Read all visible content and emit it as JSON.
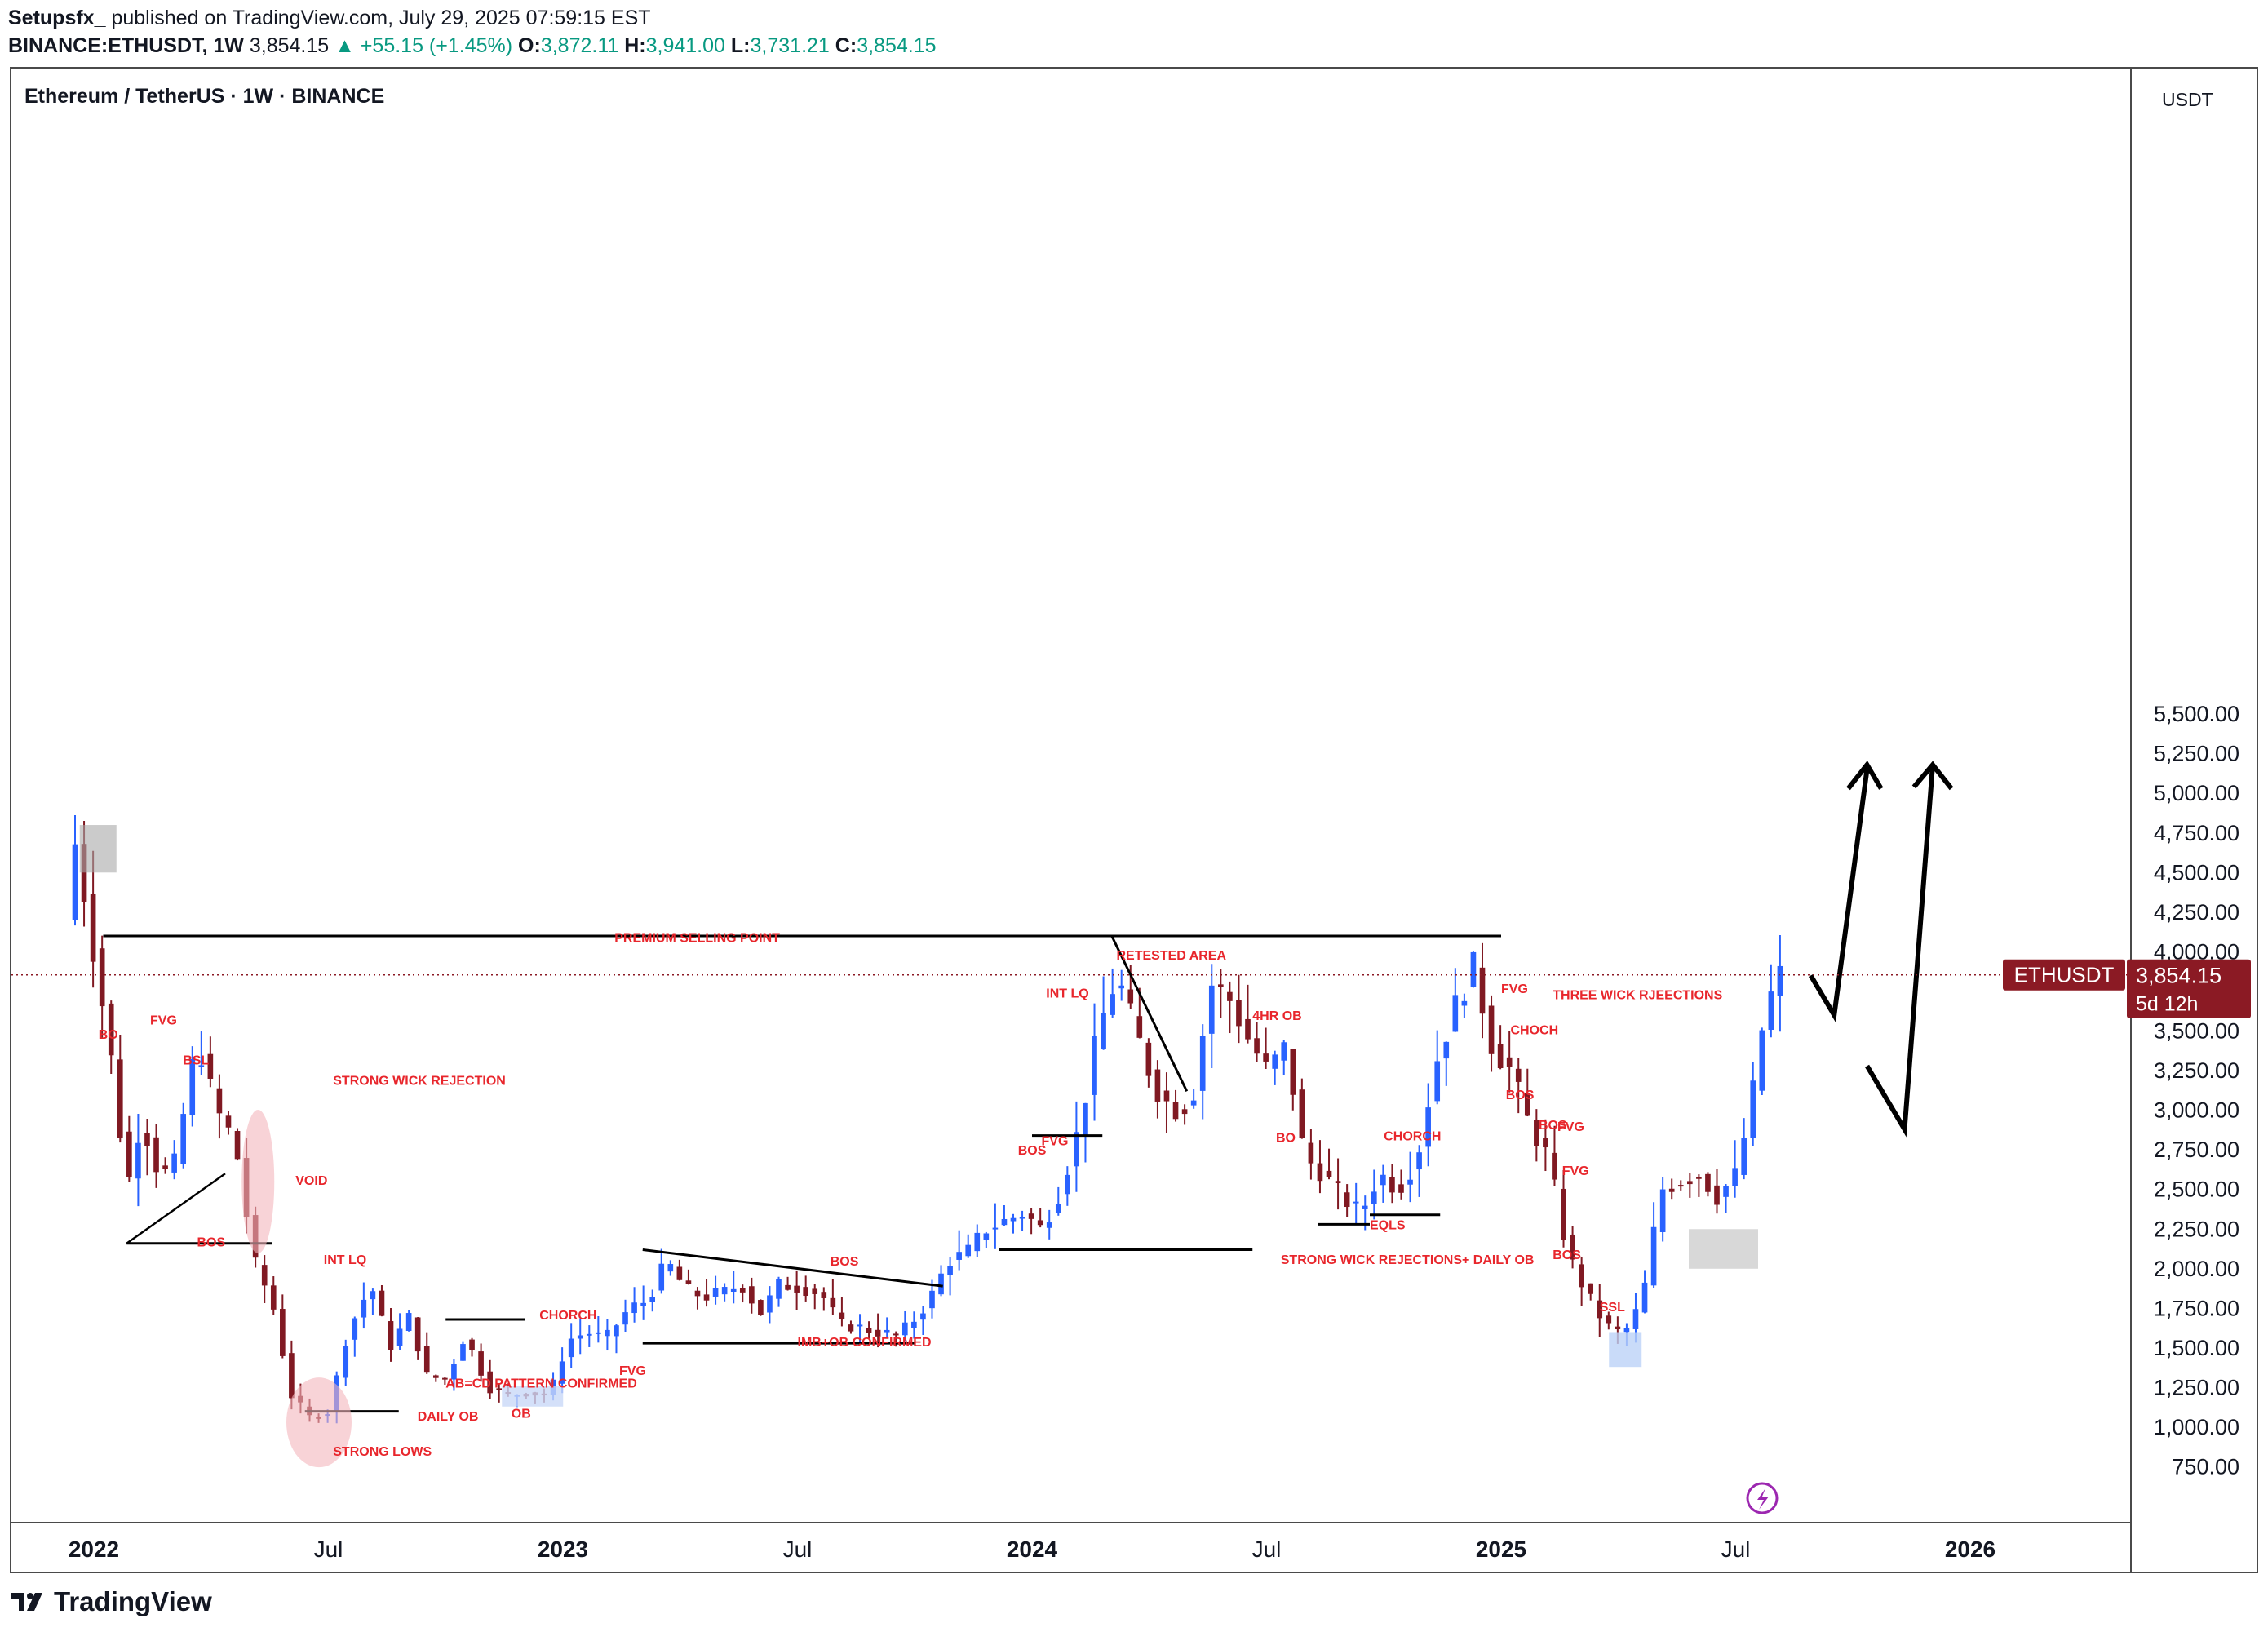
{
  "header": {
    "publisher": "Setupsfx_",
    "published_text": "published on TradingView.com, July 29, 2025 07:59:15 EST",
    "symbol": "BINANCE:ETHUSDT, 1W",
    "last": "3,854.15",
    "change": "▲ +55.15 (+1.45%)",
    "o_label": "O:",
    "o": "3,872.11",
    "h_label": "H:",
    "h": "3,941.00",
    "l_label": "L:",
    "l": "3,731.21",
    "c_label": "C:",
    "c": "3,854.15"
  },
  "chart_title": "Ethereum / TetherUS · 1W · BINANCE",
  "footer_brand": "TradingView",
  "colors": {
    "bull": "#2962ff",
    "bear": "#801922",
    "annotation": "#e8262c",
    "price_tag": "#8b1a24"
  },
  "chart_data": {
    "type": "candlestick",
    "title": "Ethereum / TetherUS · 1W · BINANCE",
    "currency": "USDT",
    "ylim": [
      545,
      5500
    ],
    "y_ticks": [
      750,
      1000,
      1250,
      1500,
      1750,
      2000,
      2250,
      2500,
      2750,
      3000,
      3250,
      3500,
      3750,
      4000,
      4250,
      4500,
      4750,
      5000,
      5250,
      5500
    ],
    "y_tick_labels": [
      "750.00",
      "1,000.00",
      "1,250.00",
      "1,500.00",
      "1,750.00",
      "2,000.00",
      "2,250.00",
      "2,500.00",
      "2,750.00",
      "3,000.00",
      "3,250.00",
      "3,500.00",
      "3,750.00",
      "4,000.00",
      "4,250.00",
      "4,500.00",
      "4,750.00",
      "5,000.00",
      "5,250.00",
      "5,500.00"
    ],
    "x_labels": [
      {
        "label": "2022",
        "t": 2022.0
      },
      {
        "label": "Jul",
        "t": 2022.5
      },
      {
        "label": "2023",
        "t": 2023.0
      },
      {
        "label": "Jul",
        "t": 2023.5
      },
      {
        "label": "2024",
        "t": 2024.0
      },
      {
        "label": "Jul",
        "t": 2024.5
      },
      {
        "label": "2025",
        "t": 2025.0
      },
      {
        "label": "Jul",
        "t": 2025.5
      },
      {
        "label": "2026",
        "t": 2026.0
      }
    ],
    "last_price": {
      "symbol": "ETHUSDT",
      "value": 3854.15,
      "label": "3,854.15",
      "countdown": "5d 12h"
    },
    "waypoints": [
      {
        "t": 2021.96,
        "p": 4200
      },
      {
        "t": 2021.98,
        "p": 4700
      },
      {
        "t": 2022.03,
        "p": 3800
      },
      {
        "t": 2022.06,
        "p": 3250
      },
      {
        "t": 2022.09,
        "p": 2500
      },
      {
        "t": 2022.12,
        "p": 2950
      },
      {
        "t": 2022.16,
        "p": 2580
      },
      {
        "t": 2022.19,
        "p": 2650
      },
      {
        "t": 2022.24,
        "p": 3450
      },
      {
        "t": 2022.28,
        "p": 3000
      },
      {
        "t": 2022.32,
        "p": 2800
      },
      {
        "t": 2022.36,
        "p": 2050
      },
      {
        "t": 2022.4,
        "p": 1780
      },
      {
        "t": 2022.44,
        "p": 1200
      },
      {
        "t": 2022.48,
        "p": 1060
      },
      {
        "t": 2022.52,
        "p": 1100
      },
      {
        "t": 2022.56,
        "p": 1600
      },
      {
        "t": 2022.61,
        "p": 1900
      },
      {
        "t": 2022.65,
        "p": 1500
      },
      {
        "t": 2022.69,
        "p": 1700
      },
      {
        "t": 2022.73,
        "p": 1320
      },
      {
        "t": 2022.77,
        "p": 1300
      },
      {
        "t": 2022.81,
        "p": 1580
      },
      {
        "t": 2022.86,
        "p": 1250
      },
      {
        "t": 2022.9,
        "p": 1200
      },
      {
        "t": 2022.94,
        "p": 1220
      },
      {
        "t": 2022.99,
        "p": 1200
      },
      {
        "t": 2023.03,
        "p": 1550
      },
      {
        "t": 2023.07,
        "p": 1600
      },
      {
        "t": 2023.11,
        "p": 1560
      },
      {
        "t": 2023.16,
        "p": 1750
      },
      {
        "t": 2023.2,
        "p": 1800
      },
      {
        "t": 2023.24,
        "p": 2050
      },
      {
        "t": 2023.28,
        "p": 1870
      },
      {
        "t": 2023.32,
        "p": 1820
      },
      {
        "t": 2023.36,
        "p": 1850
      },
      {
        "t": 2023.4,
        "p": 1900
      },
      {
        "t": 2023.44,
        "p": 1720
      },
      {
        "t": 2023.48,
        "p": 1900
      },
      {
        "t": 2023.53,
        "p": 1880
      },
      {
        "t": 2023.57,
        "p": 1840
      },
      {
        "t": 2023.61,
        "p": 1650
      },
      {
        "t": 2023.65,
        "p": 1630
      },
      {
        "t": 2023.69,
        "p": 1600
      },
      {
        "t": 2023.73,
        "p": 1580
      },
      {
        "t": 2023.76,
        "p": 1650
      },
      {
        "t": 2023.8,
        "p": 1800
      },
      {
        "t": 2023.84,
        "p": 2050
      },
      {
        "t": 2023.88,
        "p": 2100
      },
      {
        "t": 2023.92,
        "p": 2250
      },
      {
        "t": 2023.96,
        "p": 2300
      },
      {
        "t": 2024.0,
        "p": 2350
      },
      {
        "t": 2024.04,
        "p": 2250
      },
      {
        "t": 2024.08,
        "p": 2500
      },
      {
        "t": 2024.12,
        "p": 2900
      },
      {
        "t": 2024.16,
        "p": 3500
      },
      {
        "t": 2024.2,
        "p": 3850
      },
      {
        "t": 2024.24,
        "p": 3500
      },
      {
        "t": 2024.28,
        "p": 3150
      },
      {
        "t": 2024.32,
        "p": 3000
      },
      {
        "t": 2024.36,
        "p": 3050
      },
      {
        "t": 2024.4,
        "p": 3800
      },
      {
        "t": 2024.44,
        "p": 3700
      },
      {
        "t": 2024.48,
        "p": 3450
      },
      {
        "t": 2024.52,
        "p": 3250
      },
      {
        "t": 2024.56,
        "p": 3400
      },
      {
        "t": 2024.6,
        "p": 2700
      },
      {
        "t": 2024.64,
        "p": 2600
      },
      {
        "t": 2024.68,
        "p": 2450
      },
      {
        "t": 2024.72,
        "p": 2350
      },
      {
        "t": 2024.76,
        "p": 2600
      },
      {
        "t": 2024.8,
        "p": 2500
      },
      {
        "t": 2024.84,
        "p": 2700
      },
      {
        "t": 2024.88,
        "p": 3300
      },
      {
        "t": 2024.92,
        "p": 3650
      },
      {
        "t": 2024.96,
        "p": 3900
      },
      {
        "t": 2025.0,
        "p": 3400
      },
      {
        "t": 2025.04,
        "p": 3250
      },
      {
        "t": 2025.08,
        "p": 2900
      },
      {
        "t": 2025.12,
        "p": 2700
      },
      {
        "t": 2025.16,
        "p": 2100
      },
      {
        "t": 2025.2,
        "p": 1850
      },
      {
        "t": 2025.24,
        "p": 1650
      },
      {
        "t": 2025.28,
        "p": 1580
      },
      {
        "t": 2025.32,
        "p": 1800
      },
      {
        "t": 2025.36,
        "p": 2500
      },
      {
        "t": 2025.4,
        "p": 2550
      },
      {
        "t": 2025.44,
        "p": 2600
      },
      {
        "t": 2025.48,
        "p": 2450
      },
      {
        "t": 2025.52,
        "p": 2600
      },
      {
        "t": 2025.55,
        "p": 3000
      },
      {
        "t": 2025.58,
        "p": 3600
      },
      {
        "t": 2025.61,
        "p": 3854
      }
    ],
    "annotations": [
      {
        "text": "PREMIUM SELLING POINT",
        "t": 2023.11,
        "p": 4060
      },
      {
        "text": "RETESTED AREA",
        "t": 2024.18,
        "p": 3950
      },
      {
        "text": "INT LQ",
        "t": 2024.03,
        "p": 3710
      },
      {
        "text": "4HR OB",
        "t": 2024.47,
        "p": 3570
      },
      {
        "text": "FVG",
        "t": 2024.02,
        "p": 2780
      },
      {
        "text": "BOS",
        "t": 2023.97,
        "p": 2720
      },
      {
        "text": "BO",
        "t": 2024.52,
        "p": 2800
      },
      {
        "text": "STRONG WICK REJECTIONS+ DAILY OB",
        "t": 2024.53,
        "p": 2030
      },
      {
        "text": "CHORCH",
        "t": 2024.75,
        "p": 2810
      },
      {
        "text": "EQLS",
        "t": 2024.72,
        "p": 2250
      },
      {
        "text": "FVG",
        "t": 2025.0,
        "p": 3740
      },
      {
        "text": "THREE WICK RJEECTIONS",
        "t": 2025.11,
        "p": 3700
      },
      {
        "text": "CHOCH",
        "t": 2025.02,
        "p": 3480
      },
      {
        "text": "BOS",
        "t": 2025.01,
        "p": 3070
      },
      {
        "text": "BOS",
        "t": 2025.08,
        "p": 2880
      },
      {
        "text": "FVG",
        "t": 2025.12,
        "p": 2870
      },
      {
        "text": "FVG",
        "t": 2025.13,
        "p": 2590
      },
      {
        "text": "BOS",
        "t": 2025.11,
        "p": 2060
      },
      {
        "text": "SSL",
        "t": 2025.21,
        "p": 1730
      },
      {
        "text": "BOS",
        "t": 2023.57,
        "p": 2020
      },
      {
        "text": "IMB+OB CONFIRMED",
        "t": 2023.5,
        "p": 1510
      },
      {
        "text": "FVG",
        "t": 2023.12,
        "p": 1330
      },
      {
        "text": "CHORCH",
        "t": 2022.95,
        "p": 1680
      },
      {
        "text": "OB",
        "t": 2022.89,
        "p": 1060
      },
      {
        "text": "DAILY OB",
        "t": 2022.69,
        "p": 1040
      },
      {
        "text": "AB=CD PATTERN CONFIRMED",
        "t": 2022.75,
        "p": 1250
      },
      {
        "text": "STRONG LOWS",
        "t": 2022.51,
        "p": 820
      },
      {
        "text": "INT LQ",
        "t": 2022.49,
        "p": 2030
      },
      {
        "text": "BOS",
        "t": 2022.22,
        "p": 2140
      },
      {
        "text": "VOID",
        "t": 2022.43,
        "p": 2530
      },
      {
        "text": "STRONG WICK REJECTION",
        "t": 2022.51,
        "p": 3160
      },
      {
        "text": "BSL",
        "t": 2022.19,
        "p": 3290
      },
      {
        "text": "FVG",
        "t": 2022.12,
        "p": 3540
      },
      {
        "text": "BO",
        "t": 2022.01,
        "p": 3450
      }
    ]
  }
}
